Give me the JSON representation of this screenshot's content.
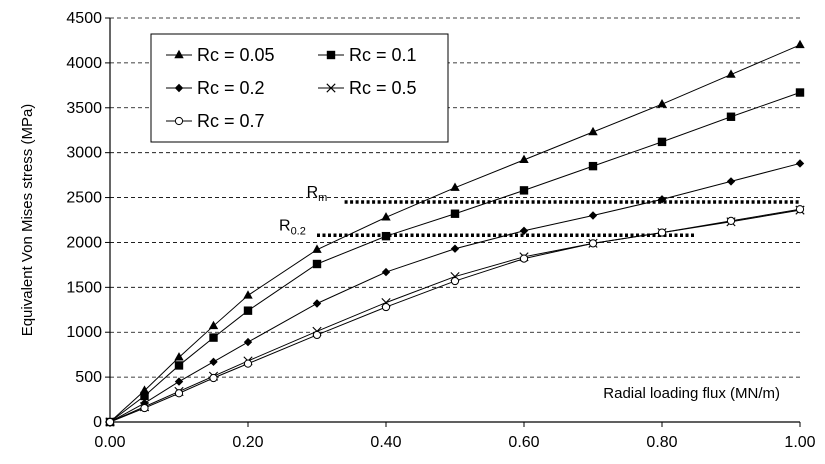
{
  "chart_data": {
    "type": "line",
    "title": "",
    "xlabel": "Radial loading flux (MN/m)",
    "ylabel": "Equivalent Von Mises stress (MPa)",
    "xlim": [
      0,
      1
    ],
    "ylim": [
      0,
      4500
    ],
    "x_ticks": [
      "0.00",
      "0.20",
      "0.40",
      "0.60",
      "0.80",
      "1.00"
    ],
    "y_ticks": [
      "0",
      "500",
      "1000",
      "1500",
      "2000",
      "2500",
      "3000",
      "3500",
      "4000",
      "4500"
    ],
    "grid": "horizontal dashed",
    "legend_position": "top-left",
    "x": [
      0,
      0.05,
      0.1,
      0.15,
      0.2,
      0.3,
      0.4,
      0.5,
      0.6,
      0.7,
      0.8,
      0.9,
      1.0
    ],
    "series": [
      {
        "name": "Rc = 0.05",
        "marker": "triangle",
        "values": [
          0,
          350,
          720,
          1070,
          1410,
          1920,
          2280,
          2610,
          2920,
          3230,
          3540,
          3870,
          4200
        ]
      },
      {
        "name": "Rc = 0.1",
        "marker": "square",
        "values": [
          0,
          290,
          630,
          940,
          1240,
          1760,
          2070,
          2320,
          2580,
          2850,
          3120,
          3400,
          3670
        ]
      },
      {
        "name": "Rc = 0.2",
        "marker": "diamond",
        "values": [
          0,
          210,
          450,
          670,
          890,
          1320,
          1670,
          1930,
          2130,
          2300,
          2480,
          2680,
          2880
        ]
      },
      {
        "name": "Rc = 0.5",
        "marker": "x",
        "values": [
          0,
          170,
          340,
          510,
          680,
          1010,
          1330,
          1620,
          1840,
          1990,
          2110,
          2230,
          2360
        ]
      },
      {
        "name": "Rc = 0.7",
        "marker": "open-circle",
        "values": [
          0,
          155,
          320,
          490,
          650,
          970,
          1280,
          1570,
          1820,
          1990,
          2110,
          2240,
          2370
        ]
      }
    ],
    "reference_lines": [
      {
        "label": "R",
        "subscript": "m",
        "value": 2450,
        "x_start": 0.34,
        "x_end": 1.0
      },
      {
        "label": "R",
        "subscript": "0.2",
        "value": 2080,
        "x_start": 0.3,
        "x_end": 0.85
      }
    ]
  }
}
